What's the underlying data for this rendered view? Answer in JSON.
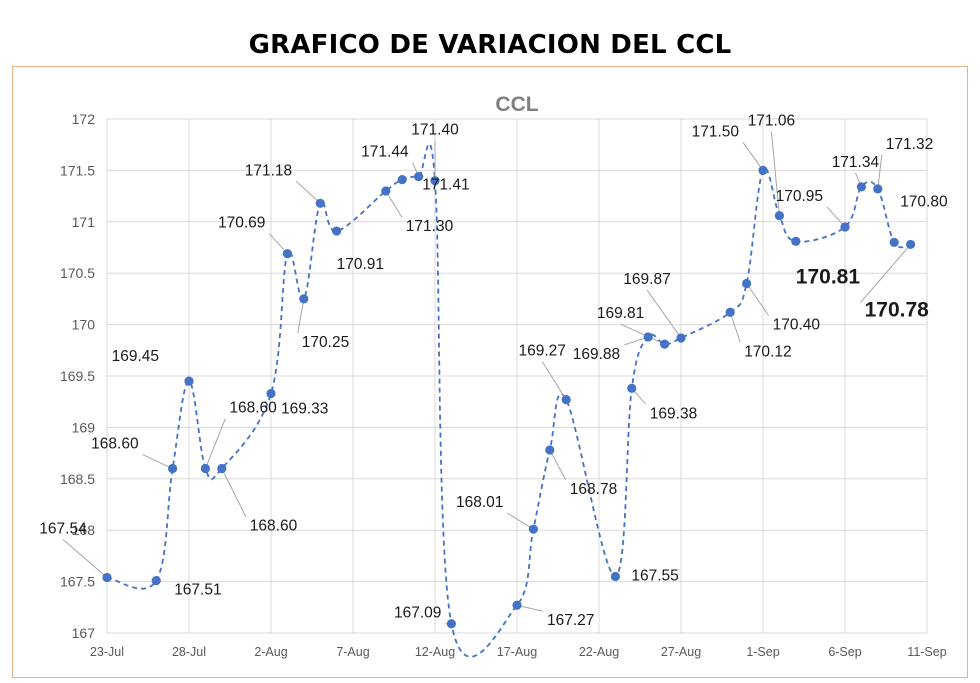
{
  "page": {
    "title": "GRAFICO DE VARIACION DEL CCL"
  },
  "chart_data": {
    "type": "line",
    "title": "CCL",
    "xlabel": "",
    "ylabel": "",
    "ylim": [
      167,
      172
    ],
    "y_ticks": [
      "167",
      "167.5",
      "168",
      "168.5",
      "169",
      "169.5",
      "170",
      "170.5",
      "171",
      "171.5",
      "172"
    ],
    "x_start": "2021-07-23",
    "x_ticks": [
      "23-Jul",
      "28-Jul",
      "2-Aug",
      "7-Aug",
      "12-Aug",
      "17-Aug",
      "22-Aug",
      "27-Aug",
      "1-Sep",
      "6-Sep",
      "11-Sep"
    ],
    "grid": true,
    "legend": "none",
    "line_style": "dashed",
    "line_color": "#4472c4",
    "marker_color": "#4472c4",
    "series": [
      {
        "points": [
          {
            "x": "2021-07-23",
            "y": 167.54,
            "label": "167.54"
          },
          {
            "x": "2021-07-26",
            "y": 167.51,
            "label": "167.51"
          },
          {
            "x": "2021-07-27",
            "y": 168.6,
            "label": "168.60"
          },
          {
            "x": "2021-07-28",
            "y": 169.45,
            "label": "169.45"
          },
          {
            "x": "2021-07-29",
            "y": 168.6,
            "label": "168.60"
          },
          {
            "x": "2021-07-30",
            "y": 168.6,
            "label": "168.60"
          },
          {
            "x": "2021-08-02",
            "y": 169.33,
            "label": "169.33"
          },
          {
            "x": "2021-08-03",
            "y": 170.69,
            "label": "170.69"
          },
          {
            "x": "2021-08-04",
            "y": 170.25,
            "label": "170.25"
          },
          {
            "x": "2021-08-05",
            "y": 171.18,
            "label": "171.18"
          },
          {
            "x": "2021-08-06",
            "y": 170.91,
            "label": "170.91"
          },
          {
            "x": "2021-08-09",
            "y": 171.3,
            "label": "171.30"
          },
          {
            "x": "2021-08-10",
            "y": 171.41,
            "label": "171.41"
          },
          {
            "x": "2021-08-11",
            "y": 171.44,
            "label": "171.44"
          },
          {
            "x": "2021-08-12",
            "y": 171.4,
            "label": "171.40"
          },
          {
            "x": "2021-08-13",
            "y": 167.09,
            "label": "167.09"
          },
          {
            "x": "2021-08-17",
            "y": 167.27,
            "label": "167.27"
          },
          {
            "x": "2021-08-18",
            "y": 168.01,
            "label": "168.01"
          },
          {
            "x": "2021-08-19",
            "y": 168.78,
            "label": "168.78"
          },
          {
            "x": "2021-08-20",
            "y": 169.27,
            "label": "169.27"
          },
          {
            "x": "2021-08-23",
            "y": 167.55,
            "label": "167.55"
          },
          {
            "x": "2021-08-24",
            "y": 169.38,
            "label": "169.38"
          },
          {
            "x": "2021-08-25",
            "y": 169.88,
            "label": "169.88"
          },
          {
            "x": "2021-08-26",
            "y": 169.81,
            "label": "169.81"
          },
          {
            "x": "2021-08-27",
            "y": 169.87,
            "label": "169.87"
          },
          {
            "x": "2021-08-30",
            "y": 170.12,
            "label": "170.12"
          },
          {
            "x": "2021-08-31",
            "y": 170.4,
            "label": "170.40"
          },
          {
            "x": "2021-09-01",
            "y": 171.5,
            "label": "171.50"
          },
          {
            "x": "2021-09-02",
            "y": 171.06,
            "label": "171.06"
          },
          {
            "x": "2021-09-03",
            "y": 170.81,
            "label": "170.81",
            "emphasis": true
          },
          {
            "x": "2021-09-06",
            "y": 170.95,
            "label": "170.95"
          },
          {
            "x": "2021-09-07",
            "y": 171.34,
            "label": "171.34"
          },
          {
            "x": "2021-09-08",
            "y": 171.32,
            "label": "171.32"
          },
          {
            "x": "2021-09-09",
            "y": 170.8,
            "label": "170.80"
          },
          {
            "x": "2021-09-10",
            "y": 170.78,
            "label": "170.78",
            "emphasis": true
          }
        ]
      }
    ]
  }
}
